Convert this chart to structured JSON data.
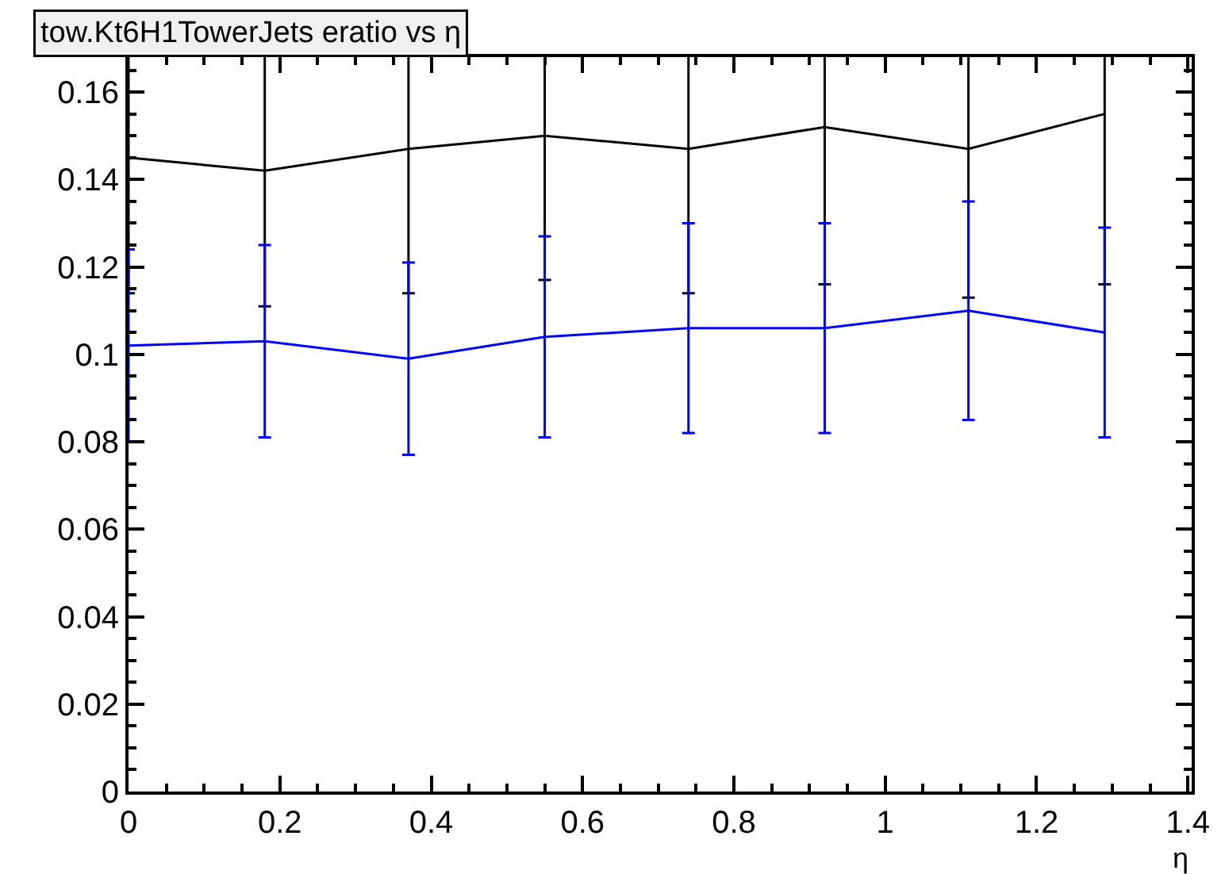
{
  "chart_data": {
    "type": "line",
    "title": "tow.Kt6H1TowerJets eratio vs η",
    "xlabel": "η",
    "x": [
      0,
      0.18,
      0.37,
      0.55,
      0.74,
      0.92,
      1.11,
      1.29
    ],
    "series": [
      {
        "color": "#000000",
        "values": [
          0.145,
          0.142,
          0.147,
          0.15,
          0.147,
          0.152,
          0.147,
          0.155
        ],
        "errors": [
          0.031,
          0.031,
          0.033,
          0.033,
          0.033,
          0.036,
          0.034,
          0.039
        ]
      },
      {
        "color": "#0000ff",
        "values": [
          0.102,
          0.103,
          0.099,
          0.104,
          0.106,
          0.106,
          0.11,
          0.105
        ],
        "errors": [
          0.022,
          0.022,
          0.022,
          0.023,
          0.024,
          0.024,
          0.025,
          0.024
        ]
      }
    ],
    "xlim": [
      0,
      1.405
    ],
    "ylim": [
      0,
      0.168
    ],
    "xticks": [
      0,
      0.2,
      0.4,
      0.6,
      0.8,
      1,
      1.2,
      1.4
    ],
    "yticks": [
      0,
      0.02,
      0.04,
      0.06,
      0.08,
      0.1,
      0.12,
      0.14,
      0.16
    ],
    "marker": "none",
    "line_style": "solid"
  }
}
